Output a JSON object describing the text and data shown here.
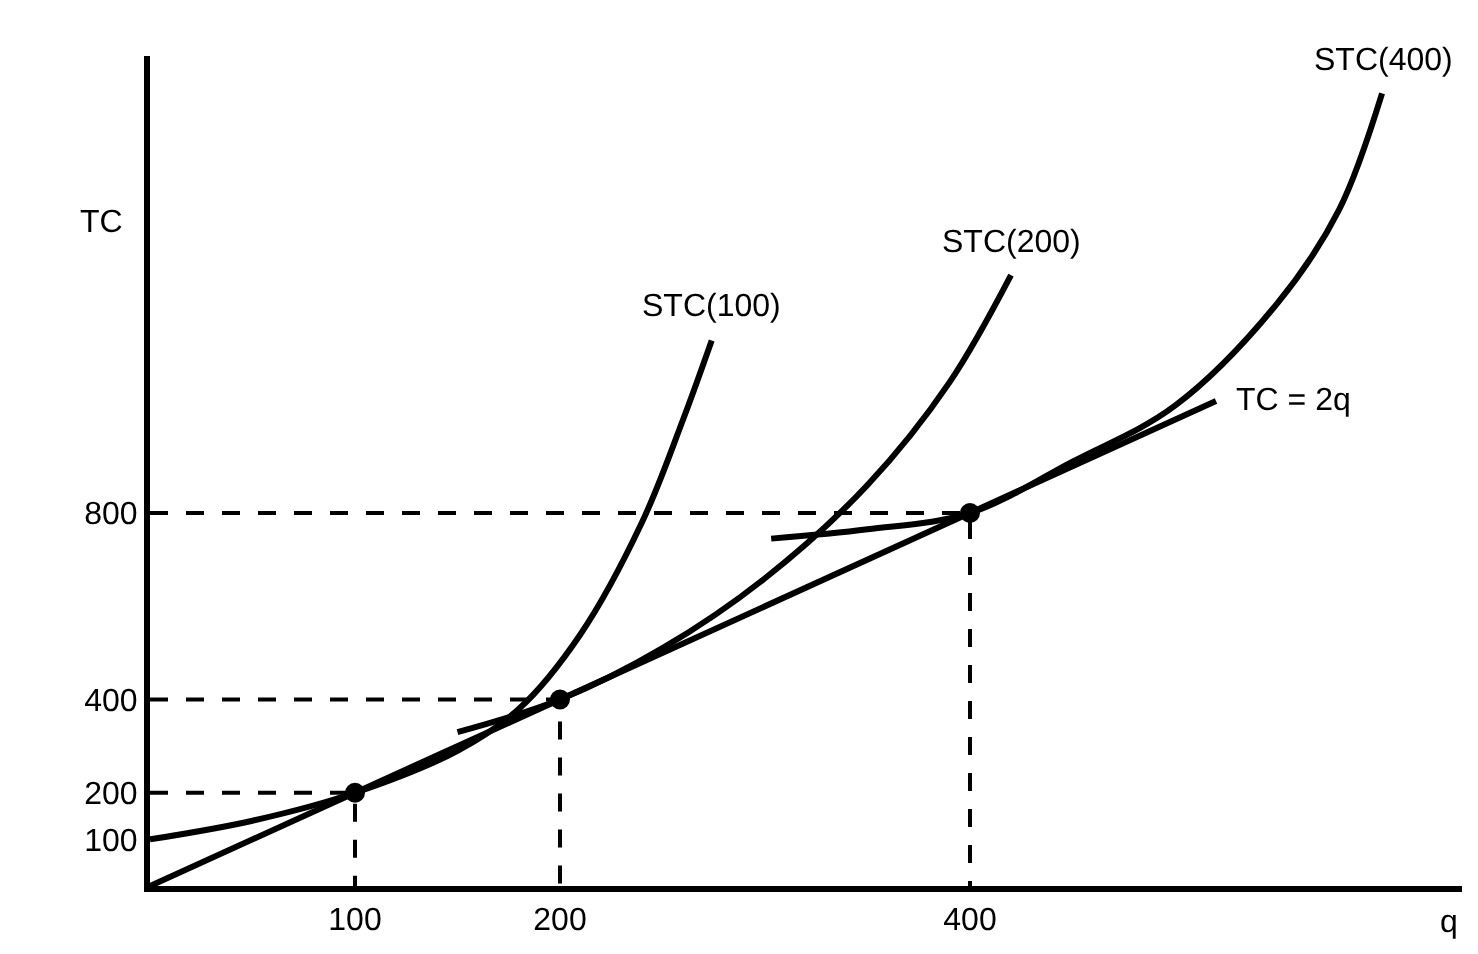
{
  "chart_data": {
    "type": "line",
    "xlabel": "q",
    "ylabel": "TC",
    "xlim": [
      0,
      640
    ],
    "ylim": [
      0,
      1780
    ],
    "xticks": [
      100,
      200,
      400
    ],
    "yticks": [
      100,
      200,
      400,
      800
    ],
    "marker": "none",
    "line_style": "solid",
    "series": [
      {
        "color": "#000000",
        "x": [
          0,
          520
        ],
        "values": [
          0,
          1040
        ]
      },
      {
        "color": "#000000",
        "x": [
          0,
          50,
          100,
          150,
          180,
          210,
          240,
          260,
          274
        ],
        "values": [
          100,
          140,
          200,
          290,
          380,
          540,
          780,
          1000,
          1170
        ]
      },
      {
        "color": "#000000",
        "x": [
          150,
          200,
          250,
          300,
          350,
          390,
          420
        ],
        "values": [
          330,
          400,
          510,
          660,
          860,
          1080,
          1310
        ]
      },
      {
        "color": "#000000",
        "x": [
          303,
          350,
          400,
          450,
          500,
          550,
          580,
          601
        ],
        "values": [
          745,
          765,
          800,
          910,
          1030,
          1250,
          1450,
          1700
        ]
      },
      {
        "color": "#000000",
        "line_style": "dashed",
        "x": [
          0,
          100,
          100
        ],
        "values": [
          200,
          200,
          0
        ]
      },
      {
        "color": "#000000",
        "line_style": "dashed",
        "x": [
          0,
          200,
          200
        ],
        "values": [
          400,
          400,
          0
        ]
      },
      {
        "color": "#000000",
        "line_style": "dashed",
        "x": [
          0,
          400,
          400
        ],
        "values": [
          800,
          800,
          0
        ]
      },
      {
        "type": "scatter",
        "marker": "circle",
        "color": "#000000",
        "x": [
          100,
          200,
          400
        ],
        "values": [
          200,
          400,
          800
        ]
      }
    ],
    "annotations": [
      {
        "text": "TC = 2q",
        "x": 520,
        "y": 1040
      },
      {
        "text": "STC(100)",
        "x": 274,
        "y": 1170
      },
      {
        "text": "STC(200)",
        "x": 420,
        "y": 1310
      },
      {
        "text": "STC(400)",
        "x": 601,
        "y": 1700
      }
    ]
  }
}
